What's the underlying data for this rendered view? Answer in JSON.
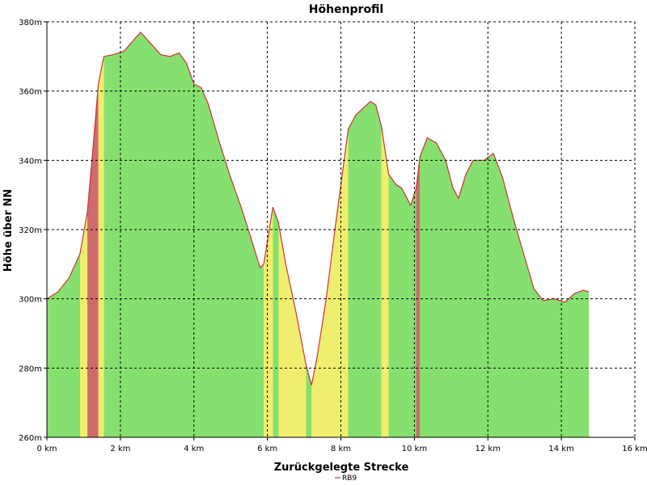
{
  "chart_data": {
    "type": "area",
    "title": "Höhenprofil",
    "xlabel": "Zurückgelegte Strecke",
    "ylabel": "Höhe über NN",
    "xlim": [
      0,
      16
    ],
    "ylim": [
      260,
      380
    ],
    "x_ticks": [
      0,
      2,
      4,
      6,
      8,
      10,
      12,
      14,
      16
    ],
    "x_tick_labels": [
      "0 km",
      "2 km",
      "4 km",
      "6 km",
      "8 km",
      "10 km",
      "12 km",
      "14 km",
      "16 km"
    ],
    "y_ticks": [
      260,
      280,
      300,
      320,
      340,
      360,
      380
    ],
    "y_tick_labels": [
      "260m",
      "280m",
      "300m",
      "320m",
      "340m",
      "360m",
      "380m"
    ],
    "grid": true,
    "legend": {
      "position": "bottom",
      "entries": [
        "RB9"
      ]
    },
    "series": [
      {
        "name": "RB9",
        "color": "#cc3333",
        "points": [
          [
            0.0,
            300
          ],
          [
            0.3,
            302
          ],
          [
            0.6,
            306
          ],
          [
            0.9,
            313
          ],
          [
            1.1,
            325
          ],
          [
            1.25,
            343
          ],
          [
            1.4,
            362
          ],
          [
            1.55,
            370
          ],
          [
            1.8,
            370.5
          ],
          [
            2.1,
            371.5
          ],
          [
            2.3,
            374
          ],
          [
            2.55,
            377
          ],
          [
            2.8,
            374
          ],
          [
            3.1,
            370.5
          ],
          [
            3.35,
            370
          ],
          [
            3.6,
            371
          ],
          [
            3.8,
            368
          ],
          [
            4.0,
            362
          ],
          [
            4.2,
            361
          ],
          [
            4.4,
            356
          ],
          [
            4.7,
            345
          ],
          [
            5.0,
            335
          ],
          [
            5.3,
            326
          ],
          [
            5.6,
            316
          ],
          [
            5.8,
            309
          ],
          [
            5.9,
            310
          ],
          [
            6.05,
            320
          ],
          [
            6.15,
            326.5
          ],
          [
            6.3,
            322
          ],
          [
            6.5,
            310
          ],
          [
            6.8,
            295
          ],
          [
            7.05,
            281
          ],
          [
            7.2,
            275
          ],
          [
            7.35,
            283
          ],
          [
            7.6,
            300
          ],
          [
            7.85,
            321
          ],
          [
            8.0,
            333
          ],
          [
            8.2,
            349
          ],
          [
            8.4,
            353
          ],
          [
            8.6,
            355
          ],
          [
            8.8,
            357
          ],
          [
            8.95,
            356
          ],
          [
            9.1,
            350
          ],
          [
            9.3,
            336
          ],
          [
            9.5,
            333
          ],
          [
            9.65,
            332
          ],
          [
            9.9,
            327
          ],
          [
            10.05,
            332
          ],
          [
            10.15,
            341
          ],
          [
            10.35,
            346.5
          ],
          [
            10.6,
            345
          ],
          [
            10.85,
            340
          ],
          [
            11.05,
            332
          ],
          [
            11.2,
            329
          ],
          [
            11.4,
            336
          ],
          [
            11.6,
            340
          ],
          [
            11.9,
            340
          ],
          [
            12.15,
            342
          ],
          [
            12.4,
            335
          ],
          [
            12.7,
            323
          ],
          [
            13.0,
            312
          ],
          [
            13.25,
            303
          ],
          [
            13.5,
            299.5
          ],
          [
            13.8,
            300
          ],
          [
            14.1,
            299
          ],
          [
            14.35,
            301.5
          ],
          [
            14.6,
            302.5
          ],
          [
            14.75,
            302
          ]
        ]
      }
    ],
    "gradient_colors": {
      "flat": "#86e06f",
      "moderate": "#f0ee6e",
      "steep": "#cd6b6e"
    }
  }
}
